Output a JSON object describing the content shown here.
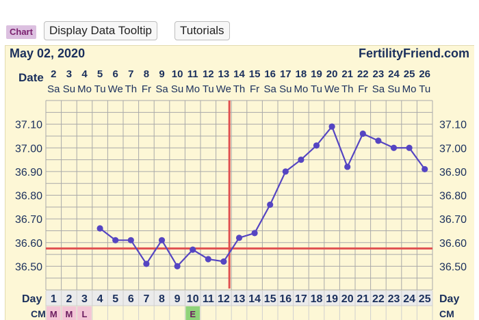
{
  "toolbar": {
    "chart_tag": "Chart",
    "tooltip_button": "Display Data Tooltip",
    "tutorials_button": "Tutorials"
  },
  "header": {
    "date": "May 02, 2020",
    "site": "FertilityFriend.com",
    "date_row_label": "Date",
    "day_row_label": "Day",
    "cm_row_label": "CM"
  },
  "colors": {
    "line": "#5545c2",
    "coverline": "#e05050",
    "ovulation_line": "#e05050",
    "cm_pink": "#f3c5d6",
    "cm_green": "#8fd37a",
    "header_text": "#1a2f5c"
  },
  "chart_data": {
    "type": "line",
    "title": "",
    "xlabel": "Day",
    "ylabel": "",
    "ylim": [
      36.4,
      37.2
    ],
    "yticks": [
      "37.10",
      "37.00",
      "36.90",
      "36.80",
      "36.70",
      "36.60",
      "36.50"
    ],
    "ytick_values": [
      37.1,
      37.0,
      36.9,
      36.8,
      36.7,
      36.6,
      36.5
    ],
    "cycle_days": [
      1,
      2,
      3,
      4,
      5,
      6,
      7,
      8,
      9,
      10,
      11,
      12,
      13,
      14,
      15,
      16,
      17,
      18,
      19,
      20,
      21,
      22,
      23,
      24,
      25
    ],
    "dates": [
      2,
      3,
      4,
      5,
      6,
      7,
      8,
      9,
      10,
      11,
      12,
      13,
      14,
      15,
      16,
      17,
      18,
      19,
      20,
      21,
      22,
      23,
      24,
      25,
      26
    ],
    "weekdays": [
      "Sa",
      "Su",
      "Mo",
      "Tu",
      "We",
      "Th",
      "Fr",
      "Sa",
      "Su",
      "Mo",
      "Tu",
      "We",
      "Th",
      "Fr",
      "Sa",
      "Su",
      "Mo",
      "Tu",
      "We",
      "Th",
      "Fr",
      "Sa",
      "Su",
      "Mo",
      "Tu"
    ],
    "series": [
      {
        "x": [
          4,
          5,
          6,
          7,
          8,
          9,
          10,
          11,
          12,
          13,
          14,
          15,
          16,
          17,
          18,
          19,
          20,
          21,
          22,
          23,
          24,
          25
        ],
        "values": [
          36.66,
          36.61,
          36.61,
          36.51,
          36.61,
          36.5,
          36.57,
          36.53,
          36.52,
          36.62,
          36.64,
          36.76,
          36.9,
          36.95,
          37.01,
          37.09,
          36.92,
          37.06,
          37.03,
          37.0,
          37.0,
          36.91
        ]
      }
    ],
    "coverline": 36.575,
    "ovulation_day": 12,
    "cm": [
      "M",
      "M",
      "L",
      "",
      "",
      "",
      "",
      "",
      "",
      "E",
      "",
      "",
      "",
      "",
      "",
      "",
      "",
      "",
      "",
      "",
      "",
      "",
      "",
      "",
      ""
    ],
    "cm_colors": [
      "pink",
      "pink",
      "pink",
      "",
      "",
      "",
      "",
      "",
      "",
      "green",
      "",
      "",
      "",
      "",
      "",
      "",
      "",
      "",
      "",
      "",
      "",
      "",
      "",
      "",
      ""
    ],
    "grid": true
  }
}
